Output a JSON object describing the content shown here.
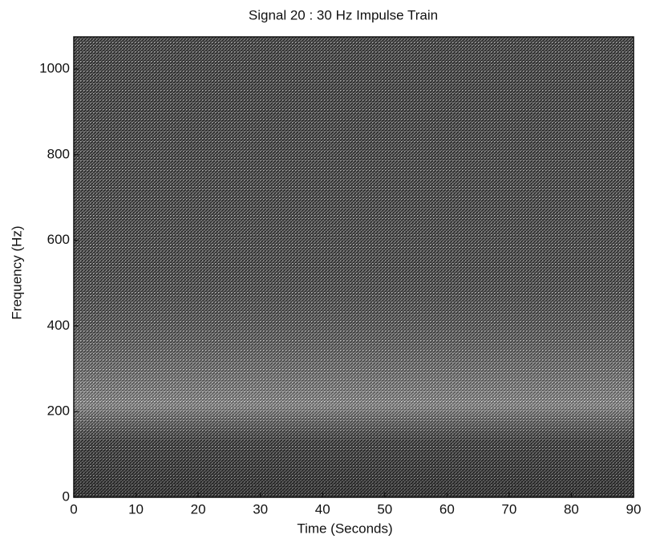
{
  "chart_data": {
    "type": "spectrogram",
    "title": "Signal 20 : 30 Hz Impulse Train",
    "x_label": "Time (Seconds)",
    "y_label": "Frequency (Hz)",
    "xlim": [
      0,
      90
    ],
    "xticks": [
      0,
      10,
      20,
      30,
      40,
      50,
      60,
      70,
      80,
      90
    ],
    "ylim": [
      0,
      1075
    ],
    "yticks": [
      0,
      200,
      400,
      600,
      800,
      1000
    ]
  }
}
